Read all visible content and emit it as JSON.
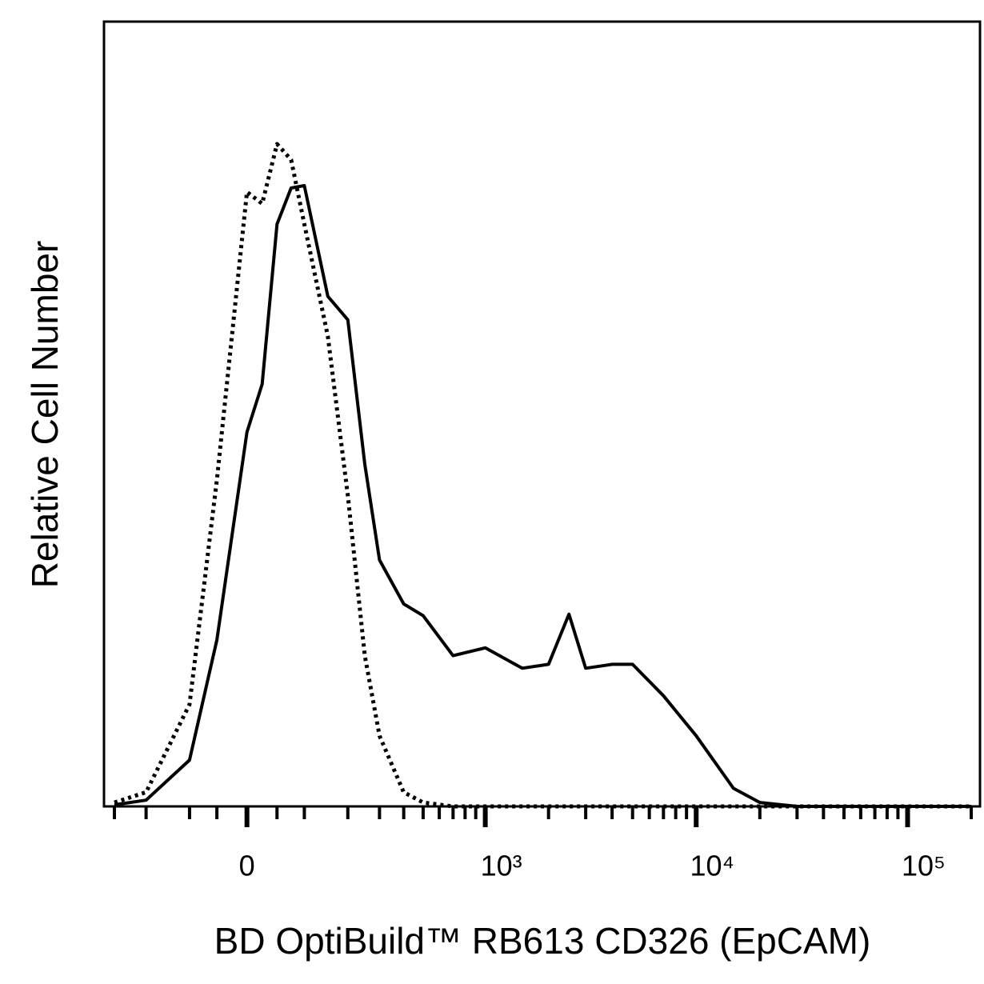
{
  "chart_data": {
    "type": "line",
    "xlabel": "BD OptiBuild™ RB613 CD326 (EpCAM)",
    "ylabel": "Relative Cell Number",
    "xscale": "biexponential",
    "xlim": [
      -340,
      220000
    ],
    "ylim": [
      0,
      100
    ],
    "xticks": [
      0,
      {
        "value": 1000,
        "label": "10³"
      },
      {
        "value": 10000,
        "label": "10⁴"
      },
      {
        "value": 100000,
        "label": "10⁵"
      }
    ],
    "xminorticks": [
      -300,
      -200,
      -100,
      -50,
      50,
      100,
      200,
      300,
      400,
      500,
      600,
      700,
      800,
      900,
      2000,
      3000,
      4000,
      5000,
      6000,
      7000,
      8000,
      9000,
      20000,
      30000,
      40000,
      50000,
      60000,
      70000,
      80000,
      90000,
      200000
    ],
    "x": [
      -300,
      -200,
      -100,
      -50,
      0,
      25,
      50,
      75,
      100,
      150,
      200,
      250,
      300,
      400,
      500,
      700,
      1000,
      1500,
      2000,
      2500,
      3000,
      4000,
      5000,
      7000,
      10000,
      15000,
      20000,
      30000,
      50000,
      100000,
      200000
    ],
    "series": [
      {
        "color": "#000000",
        "linestyle": "solid",
        "values": [
          0.2,
          0.8,
          5.9,
          21.2,
          47.7,
          53.8,
          74.2,
          78.8,
          79.1,
          65,
          62,
          43.6,
          31.4,
          25.8,
          24.3,
          19.2,
          20.2,
          17.6,
          18.1,
          24.5,
          17.6,
          18.1,
          18.1,
          14.1,
          9,
          2.3,
          0.5,
          0,
          0,
          0,
          0
        ]
      },
      {
        "color": "#000000",
        "linestyle": "dotted",
        "values": [
          0.5,
          1.8,
          13,
          41.6,
          78.3,
          76.8,
          84.4,
          82.4,
          74.2,
          59.9,
          39.6,
          19.2,
          9,
          1.8,
          0.5,
          0,
          0,
          0,
          0,
          0,
          0,
          0,
          0,
          0,
          0,
          0,
          0,
          0,
          0,
          0,
          0
        ]
      }
    ]
  }
}
